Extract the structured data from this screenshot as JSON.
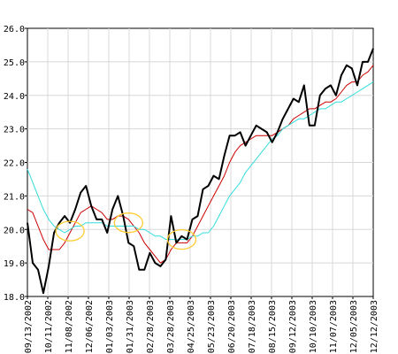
{
  "chart_data": {
    "type": "line",
    "title": "",
    "xlabel": "",
    "ylabel": "",
    "ylim": [
      18.0,
      26.0
    ],
    "y_ticks": [
      18.0,
      19.0,
      20.0,
      21.0,
      22.0,
      23.0,
      24.0,
      25.0,
      26.0
    ],
    "y_tick_labels": [
      "18.0",
      "19.0",
      "20.0",
      "21.0",
      "22.0",
      "23.0",
      "24.0",
      "25.0",
      "26.0"
    ],
    "x_tick_labels": [
      "09/13/2002",
      "10/11/2002",
      "11/08/2002",
      "12/06/2002",
      "01/03/2003",
      "01/31/2003",
      "02/28/2003",
      "03/28/2003",
      "04/25/2003",
      "05/23/2003",
      "06/20/2003",
      "07/18/2003",
      "08/15/2003",
      "09/12/2003",
      "10/10/2003",
      "11/07/2003",
      "12/05/2003",
      "12/12/2003"
    ],
    "x_tick_count_labeled": 17,
    "grid": true,
    "legend": "none",
    "x": [
      0,
      1,
      2,
      3,
      4,
      5,
      6,
      7,
      8,
      9,
      10,
      11,
      12,
      13,
      14,
      15,
      16,
      17,
      18,
      19,
      20,
      21,
      22,
      23,
      24,
      25,
      26,
      27,
      28,
      29,
      30,
      31,
      32,
      33,
      34,
      35,
      36,
      37,
      38,
      39,
      40,
      41,
      42,
      43,
      44,
      45,
      46,
      47,
      48,
      49,
      50,
      51,
      52,
      53,
      54,
      55,
      56,
      57,
      58,
      59,
      60,
      61,
      62,
      63,
      64,
      65
    ],
    "series": [
      {
        "color": "#000000",
        "values": [
          20.2,
          19.0,
          18.8,
          18.1,
          18.9,
          19.9,
          20.2,
          20.4,
          20.2,
          20.6,
          21.1,
          21.3,
          20.7,
          20.3,
          20.3,
          19.9,
          20.6,
          21.0,
          20.4,
          19.6,
          19.5,
          18.8,
          18.8,
          19.3,
          19.0,
          18.9,
          19.1,
          20.4,
          19.6,
          19.8,
          19.7,
          20.3,
          20.4,
          21.2,
          21.3,
          21.6,
          21.5,
          22.2,
          22.8,
          22.8,
          22.9,
          22.5,
          22.8,
          23.1,
          23.0,
          22.9,
          22.6,
          22.9,
          23.3,
          23.6,
          23.9,
          23.8,
          24.3,
          23.1,
          23.1,
          24.0,
          24.2,
          24.3,
          24.0,
          24.6,
          24.9,
          24.8,
          24.3,
          25.0,
          25.0,
          25.4
        ],
        "line_width": 2
      },
      {
        "color": "#cc0000",
        "values": [
          20.6,
          20.5,
          20.1,
          19.7,
          19.4,
          19.4,
          19.4,
          19.6,
          19.9,
          20.2,
          20.5,
          20.6,
          20.7,
          20.6,
          20.5,
          20.3,
          20.3,
          20.4,
          20.4,
          20.3,
          20.1,
          19.9,
          19.6,
          19.4,
          19.2,
          19.0,
          19.1,
          19.4,
          19.6,
          19.6,
          19.6,
          19.8,
          20.1,
          20.4,
          20.7,
          21.0,
          21.3,
          21.6,
          22.0,
          22.3,
          22.5,
          22.6,
          22.7,
          22.8,
          22.8,
          22.8,
          22.8,
          22.9,
          23.0,
          23.1,
          23.3,
          23.4,
          23.5,
          23.6,
          23.6,
          23.7,
          23.8,
          23.8,
          23.9,
          24.1,
          24.3,
          24.4,
          24.4,
          24.6,
          24.7,
          24.9
        ],
        "line_width": 1
      },
      {
        "color": "#33dddd",
        "values": [
          21.8,
          21.4,
          21.0,
          20.6,
          20.3,
          20.1,
          20.0,
          19.9,
          20.0,
          20.1,
          20.1,
          20.2,
          20.2,
          20.2,
          20.2,
          20.1,
          20.1,
          20.1,
          20.1,
          20.1,
          20.1,
          20.0,
          20.0,
          19.9,
          19.8,
          19.8,
          19.7,
          19.7,
          19.7,
          19.7,
          19.7,
          19.8,
          19.8,
          19.9,
          19.9,
          20.1,
          20.4,
          20.7,
          21.0,
          21.2,
          21.4,
          21.7,
          21.9,
          22.1,
          22.3,
          22.5,
          22.7,
          22.8,
          23.0,
          23.1,
          23.2,
          23.3,
          23.3,
          23.4,
          23.5,
          23.6,
          23.6,
          23.7,
          23.8,
          23.8,
          23.9,
          24.0,
          24.1,
          24.2,
          24.3,
          24.4
        ],
        "line_width": 1
      }
    ],
    "annotations": [
      {
        "shape": "ellipse",
        "color": "#ffcc33",
        "x": 8,
        "y": 19.95
      },
      {
        "shape": "ellipse",
        "color": "#ffcc33",
        "x": 19,
        "y": 20.2
      },
      {
        "shape": "ellipse",
        "color": "#ffcc33",
        "x": 29,
        "y": 19.7
      }
    ]
  }
}
